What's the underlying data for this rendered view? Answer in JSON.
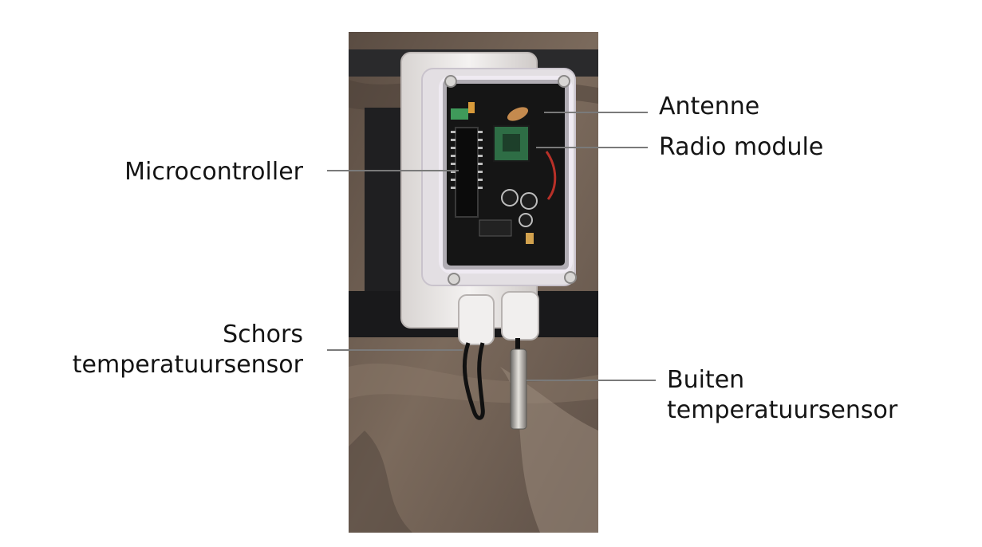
{
  "labels": {
    "antenne": "Antenne",
    "radio_module": "Radio module",
    "microcontroller": "Microcontroller",
    "schors_line1": "Schors",
    "schors_line2": "temperatuursensor",
    "buiten_line1": "Buiten",
    "buiten_line2": "temperatuursensor"
  },
  "colors": {
    "bark": "#6b5c50",
    "strap": "#1d1d1f",
    "enclosure": "#ece9e8",
    "pcb": "#141414",
    "leader": "#7a7a7a"
  }
}
